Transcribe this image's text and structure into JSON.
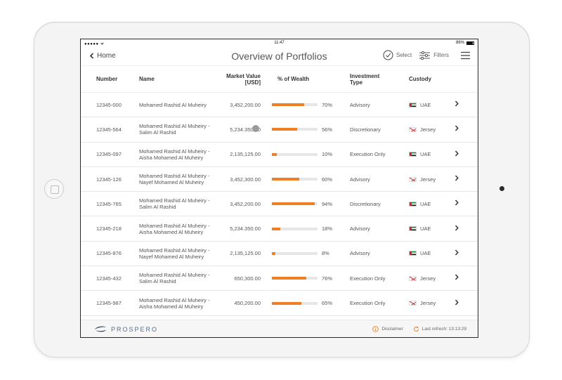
{
  "status": {
    "signal": "●●●●● ᯤ",
    "time": "11:47",
    "battery": "86%"
  },
  "nav": {
    "back_label": "Home",
    "title": "Overview of Portfolios",
    "select_label": "Select",
    "filters_label": "Filters"
  },
  "table": {
    "headers": {
      "number": "Number",
      "name": "Name",
      "market_value_1": "Market Value",
      "market_value_2": "[USD]",
      "wealth": "% of Wealth",
      "investment_1": "Investment",
      "investment_2": "Type",
      "custody": "Custody"
    },
    "rows": [
      {
        "number": "12345-000",
        "name1": "Mohamed Rashid Al Muheiry",
        "name2": "",
        "value": "3,452,200.00",
        "pct": "70%",
        "pct_value": 70,
        "type": "Advisory",
        "custody": "UAE",
        "flag": "uae"
      },
      {
        "number": "12345-564",
        "name1": "Mohamed Rashid Al Muheiry -",
        "name2": "Salim Al Rashid",
        "value": "5,234.350.00",
        "pct": "56%",
        "pct_value": 56,
        "type": "Discretionary",
        "custody": "Jersey",
        "flag": "jersey"
      },
      {
        "number": "12345-097",
        "name1": "Mohamed Rashid Al Muheiry -",
        "name2": "Aisha Mohamed Al Muheiry",
        "value": "2,135,125.00",
        "pct": "10%",
        "pct_value": 10,
        "type": "Execution Only",
        "custody": "UAE",
        "flag": "uae"
      },
      {
        "number": "12345-126",
        "name1": "Mohamed Rashid Al Muheiry -",
        "name2": "Nayef Mohamed Al Muheiry",
        "value": "3,452,300.00",
        "pct": "60%",
        "pct_value": 60,
        "type": "Advisory",
        "custody": "Jersey",
        "flag": "jersey"
      },
      {
        "number": "12345-765",
        "name1": "Mohamed Rashid Al Muheiry -",
        "name2": "Salim Al Rashid",
        "value": "3,452,200.00",
        "pct": "94%",
        "pct_value": 94,
        "type": "Discretionary",
        "custody": "UAE",
        "flag": "uae"
      },
      {
        "number": "12345-218",
        "name1": "Mohamed Rashid Al Muheiry -",
        "name2": "Aisha Mohamed Al Muheiry",
        "value": "5,234.350.00",
        "pct": "18%",
        "pct_value": 18,
        "type": "Advisory",
        "custody": "UAE",
        "flag": "uae"
      },
      {
        "number": "12345-876",
        "name1": "Mohamed Rashid Al Muheiry -",
        "name2": "Nayef Mohamed Al Muheiry",
        "value": "2,135,125.00",
        "pct": "8%",
        "pct_value": 8,
        "type": "Advisory",
        "custody": "UAE",
        "flag": "uae"
      },
      {
        "number": "12345-432",
        "name1": "Mohamed Rashid Al Muheiry -",
        "name2": "Salim Al Rashid",
        "value": "650,300.00",
        "pct": "76%",
        "pct_value": 76,
        "type": "Execution Only",
        "custody": "Jersey",
        "flag": "jersey"
      },
      {
        "number": "12345-987",
        "name1": "Mohamed Rashid Al Muheiry -",
        "name2": "Aisha Mohamed Al Muheiry",
        "value": "450,200.00",
        "pct": "65%",
        "pct_value": 65,
        "type": "Execution Only",
        "custody": "Jersey",
        "flag": "jersey"
      }
    ]
  },
  "footer": {
    "logo": "PROSPERO",
    "disclaimer_label": "Disclaimer",
    "refresh_label": "Last refresh: 13:13:29"
  },
  "colors": {
    "accent": "#ee7f23",
    "logo": "#5a6e82"
  },
  "icons": {
    "back": "chevron-left-icon",
    "select": "check-circle-icon",
    "filters": "sliders-icon",
    "menu": "hamburger-menu-icon",
    "row_arrow": "chevron-right-icon",
    "disclaimer": "info-icon",
    "refresh": "refresh-icon"
  }
}
